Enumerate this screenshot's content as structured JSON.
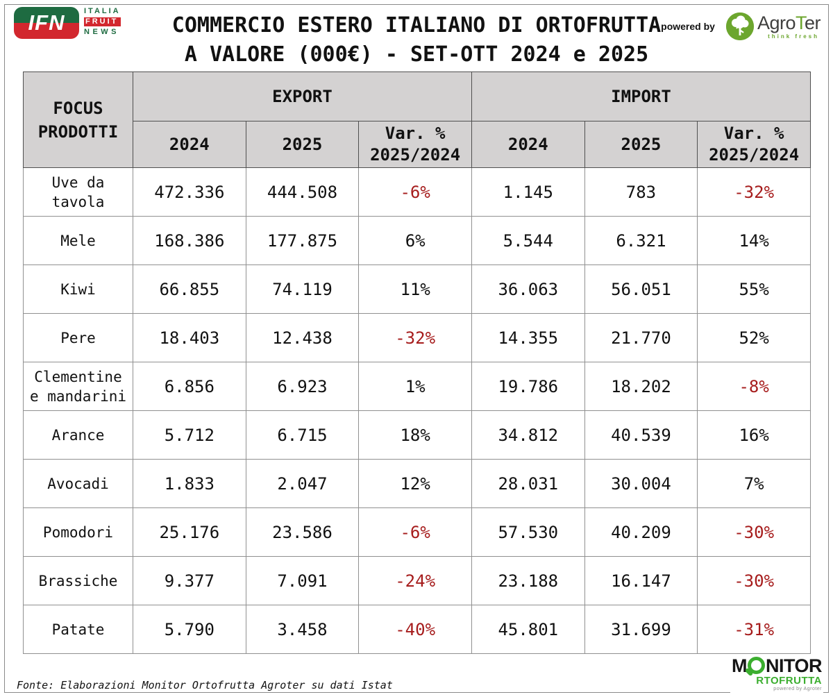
{
  "branding": {
    "ifn": {
      "acronym": "IFN",
      "line1": "ITALIA",
      "line2": "FRUIT",
      "line3": "NEWS"
    },
    "powered_by_label": "powered by",
    "agroter": {
      "name_prefix": "Agro",
      "name_t": "T",
      "name_suffix": "er",
      "tagline": "think fresh"
    },
    "monitor": {
      "m": "M",
      "nitor": "NITOR",
      "line2": "RTOFRUTTA",
      "powered": "powered by Agroter"
    }
  },
  "title": {
    "line1": "COMMERCIO ESTERO ITALIANO DI ORTOFRUTTA",
    "line2": "A VALORE (000€) - SET-OTT 2024 e 2025"
  },
  "table": {
    "header": {
      "focus": "FOCUS PRODOTTI",
      "export": "EXPORT",
      "import": "IMPORT",
      "y2024": "2024",
      "y2025": "2025",
      "var_line1": "Var. %",
      "var_line2": "2025/2024"
    },
    "rows": [
      {
        "product": "Uve da tavola",
        "cells": [
          "472.336",
          "444.508",
          "-6%",
          "1.145",
          "783",
          "-32%"
        ]
      },
      {
        "product": "Mele",
        "cells": [
          "168.386",
          "177.875",
          "6%",
          "5.544",
          "6.321",
          "14%"
        ]
      },
      {
        "product": "Kiwi",
        "cells": [
          "66.855",
          "74.119",
          "11%",
          "36.063",
          "56.051",
          "55%"
        ]
      },
      {
        "product": "Pere",
        "cells": [
          "18.403",
          "12.438",
          "-32%",
          "14.355",
          "21.770",
          "52%"
        ]
      },
      {
        "product": "Clementine e mandarini",
        "cells": [
          "6.856",
          "6.923",
          "1%",
          "19.786",
          "18.202",
          "-8%"
        ]
      },
      {
        "product": "Arance",
        "cells": [
          "5.712",
          "6.715",
          "18%",
          "34.812",
          "40.539",
          "16%"
        ]
      },
      {
        "product": "Avocadi",
        "cells": [
          "1.833",
          "2.047",
          "12%",
          "28.031",
          "30.004",
          "7%"
        ]
      },
      {
        "product": "Pomodori",
        "cells": [
          "25.176",
          "23.586",
          "-6%",
          "57.530",
          "40.209",
          "-30%"
        ]
      },
      {
        "product": "Brassiche",
        "cells": [
          "9.377",
          "7.091",
          "-24%",
          "23.188",
          "16.147",
          "-30%"
        ]
      },
      {
        "product": "Patate",
        "cells": [
          "5.790",
          "3.458",
          "-40%",
          "45.801",
          "31.699",
          "-31%"
        ]
      }
    ]
  },
  "footer": {
    "source": "Fonte: Elaborazioni Monitor Ortofrutta Agroter su dati Istat"
  },
  "colors": {
    "negative_red": "#A61C1C",
    "header_bg": "#D4D2D2",
    "ifn_green": "#1E6B41",
    "ifn_red": "#D2272E",
    "agroter_green": "#6CA62E",
    "monitor_green": "#3BAE2F"
  },
  "chart_data": {
    "type": "table",
    "title": "COMMERCIO ESTERO ITALIANO DI ORTOFRUTTA A VALORE (000€) - SET-OTT 2024 e 2025",
    "unit": "000€",
    "period": "SET-OTT 2024 e 2025",
    "column_groups": [
      "EXPORT",
      "IMPORT"
    ],
    "columns": [
      "FOCUS PRODOTTI",
      "EXPORT 2024",
      "EXPORT 2025",
      "EXPORT Var. % 2025/2024",
      "IMPORT 2024",
      "IMPORT 2025",
      "IMPORT Var. % 2025/2024"
    ],
    "rows": [
      {
        "product": "Uve da tavola",
        "export_2024": 472336,
        "export_2025": 444508,
        "export_var_pct": -6,
        "import_2024": 1145,
        "import_2025": 783,
        "import_var_pct": -32
      },
      {
        "product": "Mele",
        "export_2024": 168386,
        "export_2025": 177875,
        "export_var_pct": 6,
        "import_2024": 5544,
        "import_2025": 6321,
        "import_var_pct": 14
      },
      {
        "product": "Kiwi",
        "export_2024": 66855,
        "export_2025": 74119,
        "export_var_pct": 11,
        "import_2024": 36063,
        "import_2025": 56051,
        "import_var_pct": 55
      },
      {
        "product": "Pere",
        "export_2024": 18403,
        "export_2025": 12438,
        "export_var_pct": -32,
        "import_2024": 14355,
        "import_2025": 21770,
        "import_var_pct": 52
      },
      {
        "product": "Clementine e mandarini",
        "export_2024": 6856,
        "export_2025": 6923,
        "export_var_pct": 1,
        "import_2024": 19786,
        "import_2025": 18202,
        "import_var_pct": -8
      },
      {
        "product": "Arance",
        "export_2024": 5712,
        "export_2025": 6715,
        "export_var_pct": 18,
        "import_2024": 34812,
        "import_2025": 40539,
        "import_var_pct": 16
      },
      {
        "product": "Avocadi",
        "export_2024": 1833,
        "export_2025": 2047,
        "export_var_pct": 12,
        "import_2024": 28031,
        "import_2025": 30004,
        "import_var_pct": 7
      },
      {
        "product": "Pomodori",
        "export_2024": 25176,
        "export_2025": 23586,
        "export_var_pct": -6,
        "import_2024": 57530,
        "import_2025": 40209,
        "import_var_pct": -30
      },
      {
        "product": "Brassiche",
        "export_2024": 9377,
        "export_2025": 7091,
        "export_var_pct": -24,
        "import_2024": 23188,
        "import_2025": 16147,
        "import_var_pct": -30
      },
      {
        "product": "Patate",
        "export_2024": 5790,
        "export_2025": 3458,
        "export_var_pct": -40,
        "import_2024": 45801,
        "import_2025": 31699,
        "import_var_pct": -31
      }
    ],
    "source": "Fonte: Elaborazioni Monitor Ortofrutta Agroter su dati Istat"
  }
}
